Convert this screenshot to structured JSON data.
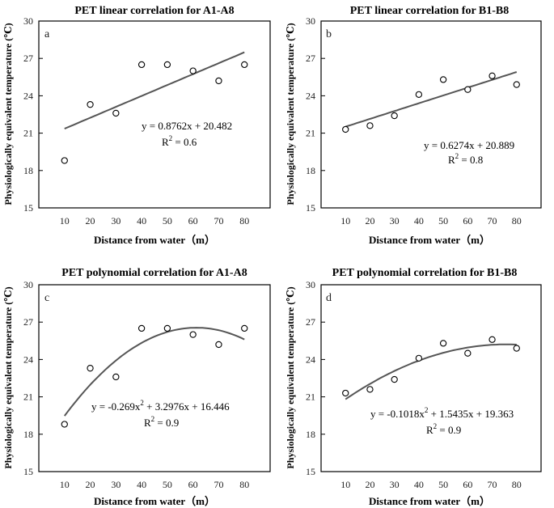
{
  "chart_data": [
    {
      "type": "scatter",
      "panel_letter": "a",
      "title": "PET linear correlation for A1-A8",
      "xlabel": "Distance from water（m）",
      "ylabel": "Physiologically equivalent temperature (℃)",
      "x": [
        10,
        20,
        30,
        40,
        50,
        60,
        70,
        80
      ],
      "y": [
        18.8,
        23.3,
        22.6,
        26.5,
        26.5,
        26.0,
        25.2,
        26.5
      ],
      "xticks": [
        "10",
        "20",
        "30",
        "40",
        "50",
        "60",
        "70",
        "80"
      ],
      "yticks": [
        "15",
        "18",
        "21",
        "24",
        "27",
        "30"
      ],
      "xlim": [
        0,
        90
      ],
      "ylim": [
        15,
        30
      ],
      "fit": {
        "kind": "linear",
        "coef": [
          0.8762,
          20.482
        ]
      },
      "eq": {
        "text": "y = 0.8762x + 20.482",
        "r2_text": "R",
        "r2_sup": "2",
        "r2_value": " =  0.6"
      }
    },
    {
      "type": "scatter",
      "panel_letter": "b",
      "title": "PET linear correlation for B1-B8",
      "xlabel": "Distance from water（m）",
      "ylabel": "Physiologically equivalent temperature (℃)",
      "x": [
        10,
        20,
        30,
        40,
        50,
        60,
        70,
        80
      ],
      "y": [
        21.3,
        21.6,
        22.4,
        24.1,
        25.3,
        24.5,
        25.6,
        24.9
      ],
      "xticks": [
        "10",
        "20",
        "30",
        "40",
        "50",
        "60",
        "70",
        "80"
      ],
      "yticks": [
        "15",
        "18",
        "21",
        "24",
        "27",
        "30"
      ],
      "xlim": [
        0,
        90
      ],
      "ylim": [
        15,
        30
      ],
      "fit": {
        "kind": "linear",
        "coef": [
          0.6274,
          20.889
        ]
      },
      "eq": {
        "text": "y = 0.6274x + 20.889",
        "r2_text": "R",
        "r2_sup": "2",
        "r2_value": " =  0.8"
      }
    },
    {
      "type": "scatter",
      "panel_letter": "c",
      "title": "PET polynomial correlation for A1-A8",
      "xlabel": "Distance from water（m）",
      "ylabel": "Physiologically equivalent temperature (℃)",
      "x": [
        10,
        20,
        30,
        40,
        50,
        60,
        70,
        80
      ],
      "y": [
        18.8,
        23.3,
        22.6,
        26.5,
        26.5,
        26.0,
        25.2,
        26.5
      ],
      "xticks": [
        "10",
        "20",
        "30",
        "40",
        "50",
        "60",
        "70",
        "80"
      ],
      "yticks": [
        "15",
        "18",
        "21",
        "24",
        "27",
        "30"
      ],
      "xlim": [
        0,
        90
      ],
      "ylim": [
        15,
        30
      ],
      "fit": {
        "kind": "poly",
        "coef": [
          -0.269,
          3.2976,
          16.446
        ]
      },
      "eq": {
        "part1": "y = -0.269x",
        "sup": "2",
        "part2": " + 3.2976x + 16.446",
        "r2_text": "R",
        "r2_sup": "2",
        "r2_value": " =  0.9"
      }
    },
    {
      "type": "scatter",
      "panel_letter": "d",
      "title": "PET polynomial correlation for B1-B8",
      "xlabel": "Distance from water（m）",
      "ylabel": "Physiologically equivalent temperature (℃)",
      "x": [
        10,
        20,
        30,
        40,
        50,
        60,
        70,
        80
      ],
      "y": [
        21.3,
        21.6,
        22.4,
        24.1,
        25.3,
        24.5,
        25.6,
        24.9
      ],
      "xticks": [
        "10",
        "20",
        "30",
        "40",
        "50",
        "60",
        "70",
        "80"
      ],
      "yticks": [
        "15",
        "18",
        "21",
        "24",
        "27",
        "30"
      ],
      "xlim": [
        0,
        90
      ],
      "ylim": [
        15,
        30
      ],
      "fit": {
        "kind": "poly",
        "coef": [
          -0.1018,
          1.5435,
          19.363
        ]
      },
      "eq": {
        "part1": "y = -0.1018x",
        "sup": "2",
        "part2": " + 1.5435x + 19.363",
        "r2_text": "R",
        "r2_sup": "2",
        "r2_value": " =  0.9"
      }
    }
  ]
}
